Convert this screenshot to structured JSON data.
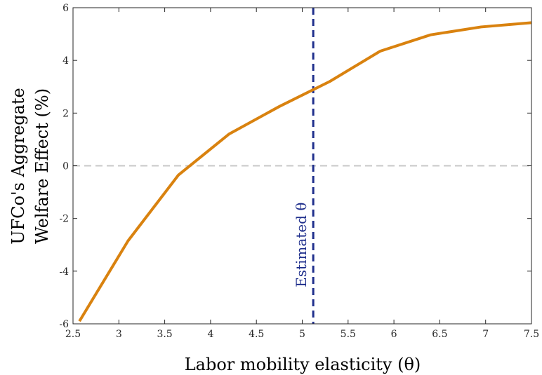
{
  "chart_data": {
    "type": "line",
    "title": "",
    "xlabel": "Labor mobility elasticity (θ)",
    "ylabel_lines": [
      "UFCo's Aggregate",
      "Welfare Effect (%)"
    ],
    "xlim": [
      2.5,
      7.5
    ],
    "ylim": [
      -6,
      6
    ],
    "x_ticks": [
      2.5,
      3,
      3.5,
      4,
      4.5,
      5,
      5.5,
      6,
      6.5,
      7,
      7.5
    ],
    "x_tick_labels": [
      "2.5",
      "3",
      "3.5",
      "4",
      "4.5",
      "5",
      "5.5",
      "6",
      "6.5",
      "7",
      "7.5"
    ],
    "y_ticks": [
      -6,
      -4,
      -2,
      0,
      2,
      4,
      6
    ],
    "y_tick_labels": [
      "-6",
      "-4",
      "-2",
      "0",
      "2",
      "4",
      "6"
    ],
    "grid": false,
    "series": [
      {
        "color": "#d9820f",
        "x": [
          2.57,
          3.1,
          3.65,
          4.2,
          4.75,
          5.3,
          5.85,
          6.4,
          6.95,
          7.5
        ],
        "y": [
          -5.9,
          -2.85,
          -0.35,
          1.2,
          2.25,
          3.2,
          4.35,
          4.97,
          5.27,
          5.43
        ]
      }
    ],
    "reference_lines": [
      {
        "orientation": "horizontal",
        "y": 0,
        "style": "dashed",
        "color": "#c8c8c8"
      },
      {
        "orientation": "vertical",
        "x": 5.12,
        "style": "dashed",
        "color": "#1f2f8c",
        "label": "Estimated θ"
      }
    ]
  }
}
